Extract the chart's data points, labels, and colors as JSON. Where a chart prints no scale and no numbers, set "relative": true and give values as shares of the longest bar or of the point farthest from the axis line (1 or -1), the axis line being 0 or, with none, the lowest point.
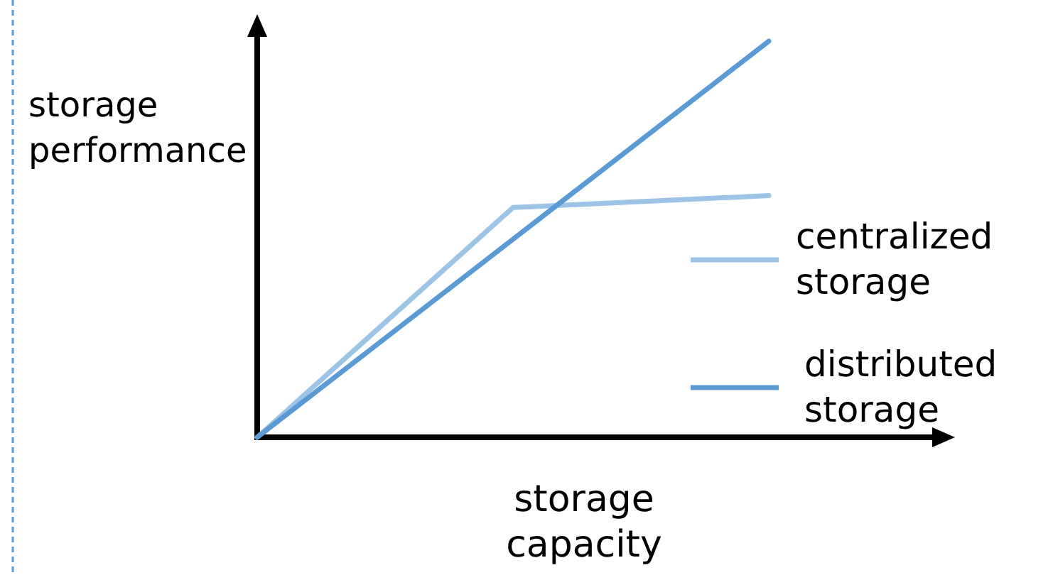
{
  "chart_data": {
    "type": "line",
    "relative": true,
    "xlabel": "storage capacity",
    "ylabel": "storage performance",
    "legend": "right",
    "categories": [
      null,
      null,
      null
    ],
    "series": [
      {
        "name": "centralized storage",
        "color": "#9dc3e6",
        "values": [
          0,
          0.58,
          0.61
        ]
      },
      {
        "name": "distributed storage",
        "color": "#5b9bd5",
        "values": [
          0,
          0.5,
          1
        ]
      }
    ]
  }
}
